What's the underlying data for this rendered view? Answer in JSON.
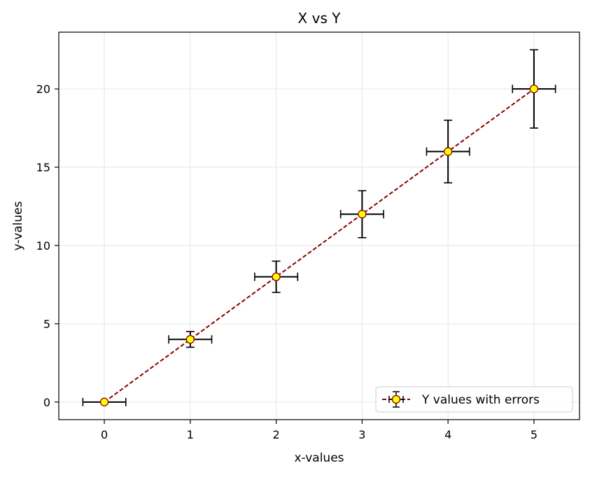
{
  "chart_data": {
    "type": "scatter",
    "title": "X vs Y",
    "xlabel": "x-values",
    "ylabel": "y-values",
    "xlim": [
      -0.53,
      5.53
    ],
    "ylim": [
      -1.125,
      23.625
    ],
    "xticks": [
      0,
      1,
      2,
      3,
      4,
      5
    ],
    "yticks": [
      0,
      5,
      10,
      15,
      20
    ],
    "grid": true,
    "legend_position": "lower right",
    "series": [
      {
        "name": "Y values with errors",
        "line_style": "dashed",
        "line_color": "#8b0000",
        "marker_face_color": "#ffff00",
        "marker_edge_color": "#8b0000",
        "errorbar_color": "#000000",
        "x": [
          0,
          1,
          2,
          3,
          4,
          5
        ],
        "y": [
          0,
          4,
          8,
          12,
          16,
          20
        ],
        "xerr": [
          0.25,
          0.25,
          0.25,
          0.25,
          0.25,
          0.25
        ],
        "yerr": [
          0.0,
          0.5,
          1.0,
          1.5,
          2.0,
          2.5
        ]
      }
    ]
  }
}
